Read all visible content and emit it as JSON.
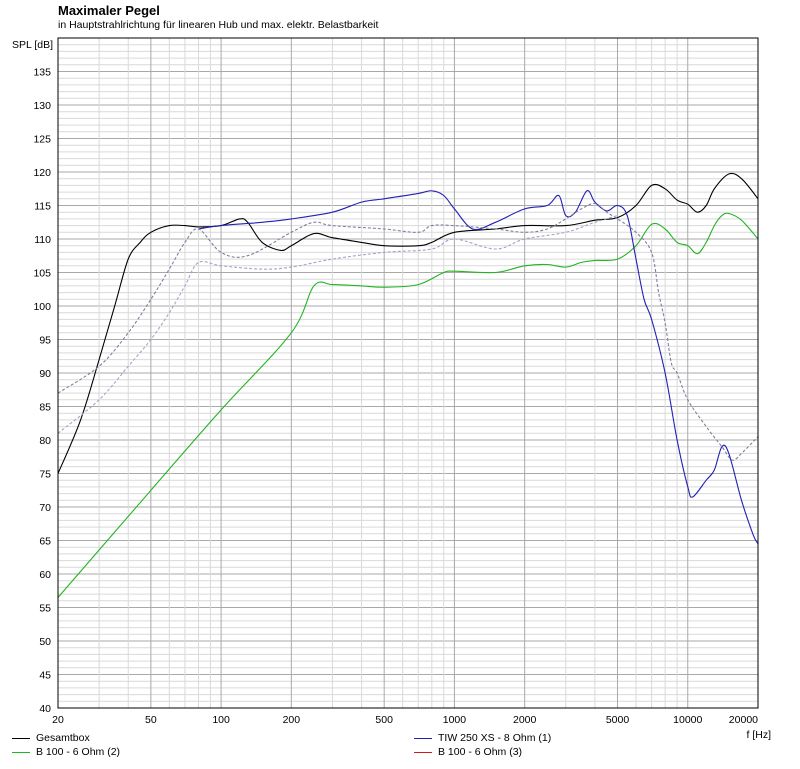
{
  "chart_data": {
    "type": "line",
    "title": "Maximaler Pegel",
    "subtitle": "in Hauptstrahlrichtung für linearen Hub und max. elektr. Belastbarkeit",
    "ylabel": "SPL [dB]",
    "xlabel": "f [Hz]",
    "xscale": "log",
    "xlim": [
      20,
      20000
    ],
    "ylim": [
      40,
      140
    ],
    "grid": true,
    "legend_position": "bottom",
    "x_ticks": [
      20,
      50,
      100,
      200,
      500,
      1000,
      2000,
      5000,
      10000,
      20000
    ],
    "y_ticks": [
      40,
      45,
      50,
      55,
      60,
      65,
      70,
      75,
      80,
      85,
      90,
      95,
      100,
      105,
      110,
      115,
      120,
      125,
      130,
      135
    ],
    "series": [
      {
        "name": "Gesamtbox",
        "color": "#000000",
        "style": "solid",
        "points": [
          [
            20,
            75
          ],
          [
            25,
            83
          ],
          [
            30,
            92
          ],
          [
            35,
            100
          ],
          [
            40,
            107
          ],
          [
            45,
            109.5
          ],
          [
            50,
            111
          ],
          [
            60,
            112
          ],
          [
            70,
            112
          ],
          [
            80,
            111.8
          ],
          [
            100,
            112
          ],
          [
            120,
            113
          ],
          [
            130,
            112.5
          ],
          [
            150,
            109.5
          ],
          [
            180,
            108.3
          ],
          [
            200,
            109
          ],
          [
            250,
            110.8
          ],
          [
            300,
            110.2
          ],
          [
            400,
            109.5
          ],
          [
            500,
            109
          ],
          [
            700,
            109
          ],
          [
            800,
            109.5
          ],
          [
            1000,
            111
          ],
          [
            1500,
            111.5
          ],
          [
            2000,
            112
          ],
          [
            3000,
            112
          ],
          [
            4000,
            112.8
          ],
          [
            5000,
            113.2
          ],
          [
            6000,
            115
          ],
          [
            7000,
            118
          ],
          [
            8000,
            117.5
          ],
          [
            9000,
            115.8
          ],
          [
            10000,
            115.2
          ],
          [
            11000,
            114
          ],
          [
            12000,
            115
          ],
          [
            13000,
            117.5
          ],
          [
            15000,
            119.7
          ],
          [
            17000,
            119
          ],
          [
            20000,
            116
          ]
        ]
      },
      {
        "name": "B 100 - 6 Ohm (2)",
        "color": "#22b422",
        "style": "solid",
        "points": [
          [
            20,
            56.5
          ],
          [
            50,
            72.5
          ],
          [
            100,
            84.5
          ],
          [
            200,
            96
          ],
          [
            250,
            103
          ],
          [
            300,
            103.2
          ],
          [
            400,
            103
          ],
          [
            500,
            102.8
          ],
          [
            700,
            103.2
          ],
          [
            900,
            105
          ],
          [
            1000,
            105.2
          ],
          [
            1500,
            105
          ],
          [
            2000,
            106
          ],
          [
            2500,
            106.2
          ],
          [
            3000,
            105.8
          ],
          [
            3500,
            106.5
          ],
          [
            4000,
            106.8
          ],
          [
            5000,
            107
          ],
          [
            6000,
            109
          ],
          [
            7000,
            112.2
          ],
          [
            8000,
            111.5
          ],
          [
            9000,
            109.5
          ],
          [
            10000,
            109
          ],
          [
            11000,
            107.8
          ],
          [
            12000,
            109.5
          ],
          [
            13000,
            112
          ],
          [
            14000,
            113.5
          ],
          [
            15000,
            113.8
          ],
          [
            17000,
            112.8
          ],
          [
            20000,
            110
          ]
        ]
      },
      {
        "name": "TIW 250 XS - 8 Ohm (1)",
        "color": "#2020b4",
        "style": "solid",
        "points": [
          [
            80,
            111.5
          ],
          [
            100,
            112
          ],
          [
            150,
            112.5
          ],
          [
            200,
            113
          ],
          [
            300,
            114
          ],
          [
            400,
            115.5
          ],
          [
            500,
            116
          ],
          [
            700,
            116.8
          ],
          [
            800,
            117.2
          ],
          [
            900,
            116.5
          ],
          [
            1000,
            114.5
          ],
          [
            1200,
            111.5
          ],
          [
            1500,
            112.5
          ],
          [
            2000,
            114.5
          ],
          [
            2500,
            115
          ],
          [
            2800,
            116.5
          ],
          [
            3000,
            113.5
          ],
          [
            3300,
            114
          ],
          [
            3700,
            117.2
          ],
          [
            4000,
            115.5
          ],
          [
            4500,
            114.2
          ],
          [
            5000,
            115
          ],
          [
            5500,
            113.5
          ],
          [
            6000,
            107
          ],
          [
            6500,
            101
          ],
          [
            7000,
            98
          ],
          [
            8000,
            90
          ],
          [
            9000,
            80
          ],
          [
            10000,
            73
          ],
          [
            10500,
            71.5
          ],
          [
            12000,
            74
          ],
          [
            13000,
            75.5
          ],
          [
            14000,
            79
          ],
          [
            15000,
            78
          ],
          [
            17000,
            71
          ],
          [
            19000,
            66
          ],
          [
            20000,
            64.5
          ]
        ]
      },
      {
        "name": "B 100 - 6 Ohm (3)",
        "color": "#c81e1e",
        "style": "solid",
        "points": []
      },
      {
        "name": "",
        "color": "#7f7f9f",
        "style": "dashed",
        "points": [
          [
            20,
            87
          ],
          [
            30,
            91
          ],
          [
            40,
            96
          ],
          [
            50,
            101
          ],
          [
            60,
            105.5
          ],
          [
            70,
            109.5
          ],
          [
            80,
            111.5
          ],
          [
            100,
            108
          ],
          [
            130,
            107.5
          ],
          [
            200,
            111
          ],
          [
            250,
            112.5
          ],
          [
            300,
            112
          ],
          [
            500,
            111.5
          ],
          [
            700,
            111
          ],
          [
            800,
            112
          ],
          [
            1000,
            112
          ],
          [
            1500,
            111.5
          ],
          [
            2000,
            111
          ],
          [
            2500,
            111.5
          ],
          [
            3000,
            113
          ],
          [
            3500,
            114.5
          ],
          [
            4000,
            115.3
          ],
          [
            4500,
            114
          ],
          [
            5000,
            113
          ],
          [
            6000,
            111
          ],
          [
            7000,
            108
          ],
          [
            7500,
            102
          ],
          [
            8000,
            97.5
          ],
          [
            8500,
            91.5
          ],
          [
            9000,
            90
          ],
          [
            10000,
            86
          ],
          [
            12000,
            82
          ],
          [
            14000,
            79
          ],
          [
            15500,
            77
          ],
          [
            17000,
            78
          ],
          [
            20000,
            80.5
          ]
        ]
      },
      {
        "name": "",
        "color": "#9fa7c7",
        "style": "dashed",
        "points": [
          [
            20,
            81
          ],
          [
            30,
            86
          ],
          [
            40,
            91
          ],
          [
            50,
            95
          ],
          [
            60,
            99
          ],
          [
            70,
            103
          ],
          [
            80,
            106.5
          ],
          [
            100,
            106
          ],
          [
            150,
            105.5
          ],
          [
            200,
            105.8
          ],
          [
            300,
            107
          ],
          [
            500,
            108
          ],
          [
            800,
            108.5
          ],
          [
            1000,
            110
          ],
          [
            1500,
            108.5
          ],
          [
            2000,
            110
          ],
          [
            3000,
            111
          ],
          [
            4000,
            112.5
          ],
          [
            5000,
            113.5
          ]
        ]
      }
    ]
  },
  "legend": [
    {
      "label": "Gesamtbox",
      "color": "#000000"
    },
    {
      "label": "TIW 250 XS - 8 Ohm (1)",
      "color": "#2020b4"
    },
    {
      "label": "B 100 - 6 Ohm (2)",
      "color": "#22b422"
    },
    {
      "label": "B 100 - 6 Ohm (3)",
      "color": "#c81e1e"
    }
  ]
}
